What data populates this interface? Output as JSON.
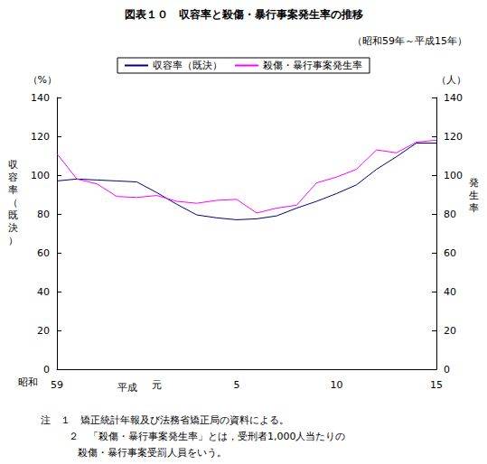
{
  "chart_data": {
    "type": "line",
    "title": "図表１０　収容率と殺傷・暴行事案発生率の推移",
    "subtitle": "（昭和59年～平成15年）",
    "categories": [
      "59",
      null,
      null,
      null,
      null,
      "元",
      null,
      null,
      null,
      "5",
      null,
      null,
      null,
      null,
      "10",
      null,
      null,
      null,
      null,
      "15"
    ],
    "series": [
      {
        "name": "収容率（既決）",
        "color": "#000080",
        "values": [
          97,
          98,
          97.5,
          97,
          96.5,
          91,
          85,
          79.5,
          78,
          77,
          77.5,
          79,
          83,
          86.5,
          90.5,
          95,
          103,
          109.5,
          116.5,
          116.5
        ]
      },
      {
        "name": "殺傷・暴行事案発生率",
        "color": "#ff00ff",
        "axis": "y2",
        "values": [
          111,
          98,
          95.5,
          89,
          88.5,
          89.5,
          86.5,
          85.5,
          87,
          87.5,
          80.5,
          83,
          84.5,
          96,
          99,
          103,
          113,
          111.5,
          117,
          118
        ]
      }
    ],
    "ylabel": "収容率（既決）",
    "y_unit": "（%）",
    "y2label": "発生率",
    "y2_unit": "（人）",
    "ylim": [
      0,
      140
    ],
    "yticks": [
      0,
      20,
      40,
      60,
      80,
      100,
      120,
      140
    ],
    "y2lim": [
      0,
      140
    ],
    "y2ticks": [
      0,
      20,
      40,
      60,
      80,
      100,
      120,
      140
    ],
    "annotations": [
      "昭和",
      "平成"
    ],
    "notes": [
      "注　１　矯正統計年報及び法務省矯正局の資料による。",
      "２　「殺傷・暴行事案発生率」とは，受刑者1,000人当たりの",
      "殺傷・暴行事案受罰人員をいう。"
    ],
    "legend": "top",
    "grid": false
  }
}
